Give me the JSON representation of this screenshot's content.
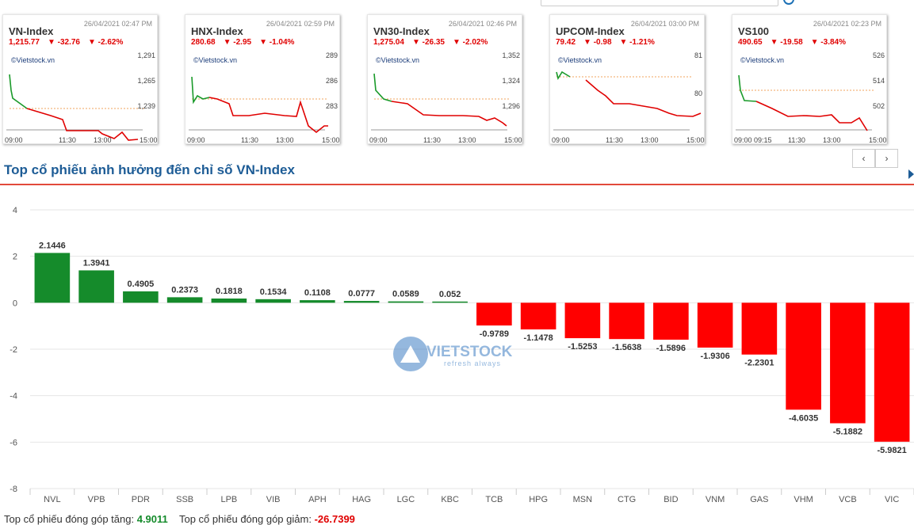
{
  "cards": [
    {
      "name": "VN-Index",
      "timestamp": "26/04/2021 02:47 PM",
      "value": "1,215.77",
      "change": "-32.76",
      "pct": "-2.62%",
      "brand": "©Vietstock.vn",
      "yticks": [
        "1,291",
        "1,265",
        "1,239"
      ],
      "xticks": [
        "09:00",
        "11:30",
        "13:00",
        "15:00"
      ]
    },
    {
      "name": "HNX-Index",
      "timestamp": "26/04/2021 02:59 PM",
      "value": "280.68",
      "change": "-2.95",
      "pct": "-1.04%",
      "brand": "©Vietstock.vn",
      "yticks": [
        "289",
        "286",
        "283"
      ],
      "xticks": [
        "09:00",
        "11:30",
        "13:00",
        "15:00"
      ]
    },
    {
      "name": "VN30-Index",
      "timestamp": "26/04/2021 02:46 PM",
      "value": "1,275.04",
      "change": "-26.35",
      "pct": "-2.02%",
      "brand": "©Vietstock.vn",
      "yticks": [
        "1,352",
        "1,324",
        "1,296"
      ],
      "xticks": [
        "09:00",
        "11:30",
        "13:00",
        "15:00"
      ]
    },
    {
      "name": "UPCOM-Index",
      "timestamp": "26/04/2021 03:00 PM",
      "value": "79.42",
      "change": "-0.98",
      "pct": "-1.21%",
      "brand": "©Vietstock.vn",
      "yticks": [
        "81",
        "80"
      ],
      "xticks": [
        "09:00",
        "11:30",
        "13:00",
        "15:00"
      ]
    },
    {
      "name": "VS100",
      "timestamp": "26/04/2021 02:23 PM",
      "value": "490.65",
      "change": "-19.58",
      "pct": "-3.84%",
      "brand": "©Vietstock.vn",
      "yticks": [
        "526",
        "514",
        "502"
      ],
      "xticks": [
        "09:00 09:15",
        "11:30",
        "13:00",
        "15:00"
      ]
    }
  ],
  "section_title": "Top cổ phiếu ảnh hưởng đến chỉ số VN-Index",
  "nav": {
    "prev": "‹",
    "next": "›"
  },
  "watermark": {
    "text": "VIETSTOCK",
    "tagline": "refresh always"
  },
  "footer": {
    "up_label": "Top cổ phiếu đóng góp tăng:",
    "up_value": "4.9011",
    "down_label": "Top cổ phiếu đóng góp giảm:",
    "down_value": "-26.7399"
  },
  "colors": {
    "positive": "#158b2b",
    "negative": "#ff0000",
    "grid": "#e6e6e6",
    "accent": "#1d5c96"
  },
  "chart_data": {
    "type": "bar",
    "categories": [
      "NVL",
      "VPB",
      "PDR",
      "SSB",
      "LPB",
      "VIB",
      "APH",
      "HAG",
      "LGC",
      "KBC",
      "TCB",
      "HPG",
      "MSN",
      "CTG",
      "BID",
      "VNM",
      "GAS",
      "VHM",
      "VCB",
      "VIC"
    ],
    "values": [
      2.1446,
      1.3941,
      0.4905,
      0.2373,
      0.1818,
      0.1534,
      0.1108,
      0.0777,
      0.0589,
      0.052,
      -0.9789,
      -1.1478,
      -1.5253,
      -1.5638,
      -1.5896,
      -1.9306,
      -2.2301,
      -4.6035,
      -5.1882,
      -5.9821
    ],
    "labels": [
      "2.1446",
      "1.3941",
      "0.4905",
      "0.2373",
      "0.1818",
      "0.1534",
      "0.1108",
      "0.0777",
      "0.0589",
      "0.052",
      "-0.9789",
      "-1.1478",
      "-1.5253",
      "-1.5638",
      "-1.5896",
      "-1.9306",
      "-2.2301",
      "-4.6035",
      "-5.1882",
      "-5.9821"
    ],
    "yticks": [
      4,
      2,
      0,
      -2,
      -4,
      -6,
      -8
    ],
    "ylim": [
      -8,
      4
    ],
    "title": "",
    "xlabel": "",
    "ylabel": "",
    "grid": true
  }
}
